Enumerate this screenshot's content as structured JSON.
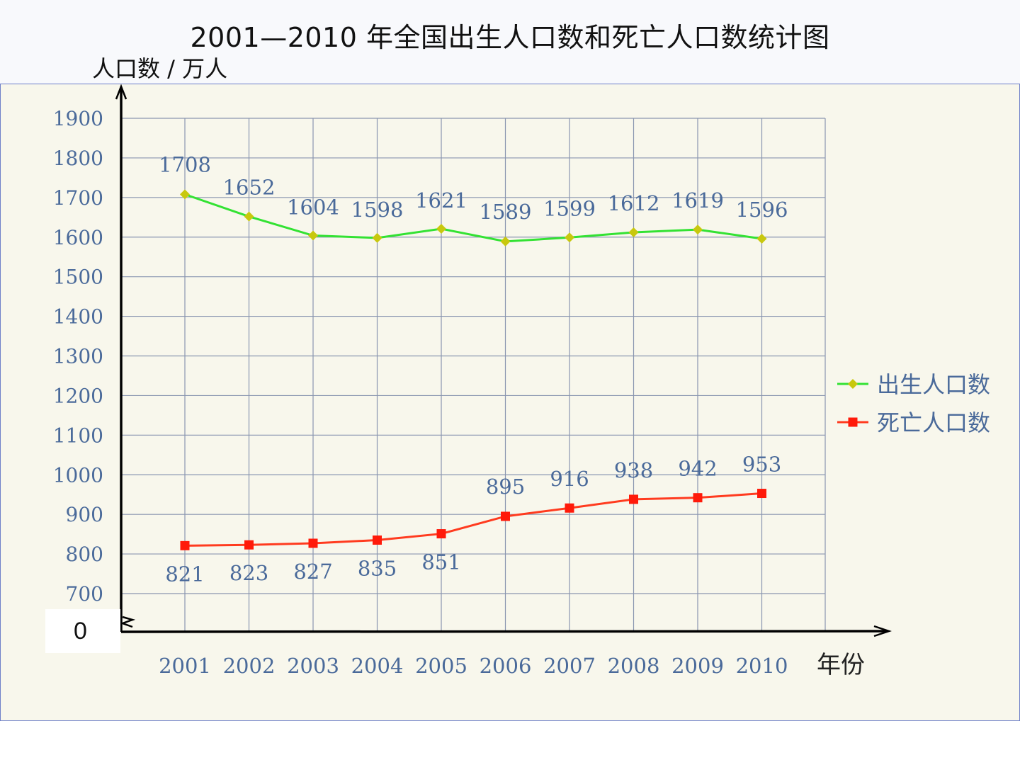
{
  "chart_data": {
    "type": "line",
    "title": "2001—2010 年全国出生人口数和死亡人口数统计图",
    "ylabel": "人口数 / 万人",
    "xlabel": "年份",
    "categories": [
      "2001",
      "2002",
      "2003",
      "2004",
      "2005",
      "2006",
      "2007",
      "2008",
      "2009",
      "2010"
    ],
    "series": [
      {
        "name": "出生人口数",
        "color": "#33e233",
        "marker_color": "#c8c80e",
        "marker": "diamond",
        "values": [
          1708,
          1652,
          1604,
          1598,
          1621,
          1589,
          1599,
          1612,
          1619,
          1596
        ]
      },
      {
        "name": "死亡人口数",
        "color": "#ff3b1f",
        "marker_color": "#ff1a0a",
        "marker": "square",
        "values": [
          821,
          823,
          827,
          835,
          851,
          895,
          916,
          938,
          942,
          953
        ]
      }
    ],
    "ylim": [
      600,
      1900
    ],
    "yticks": [
      700,
      800,
      900,
      1000,
      1100,
      1200,
      1300,
      1400,
      1500,
      1600,
      1700,
      1800,
      1900
    ],
    "y_zero_label": "0",
    "y_axis_break": true,
    "grid": true,
    "legend_position": "right"
  }
}
